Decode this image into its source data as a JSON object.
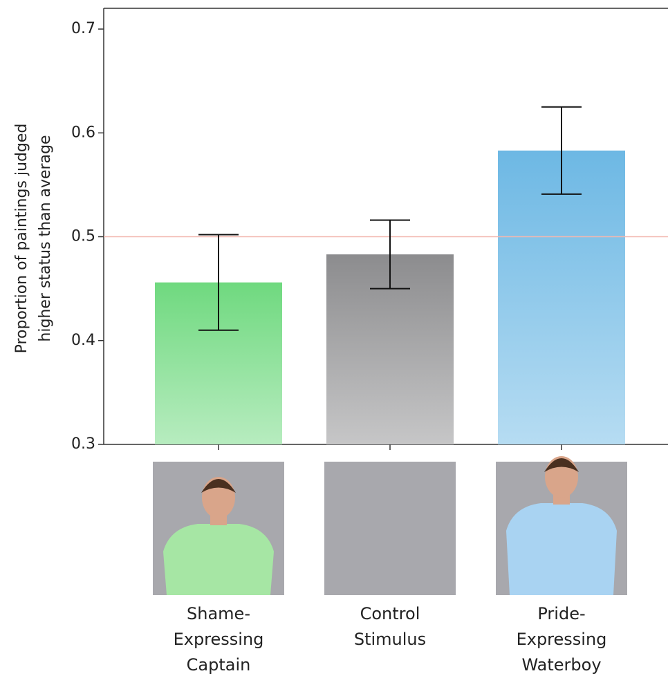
{
  "chart_data": {
    "type": "bar",
    "ylabel": [
      "Proportion of paintings judged",
      "higher status than average"
    ],
    "categories": [
      "Shame-\nExpressing\nCaptain",
      "Control\nStimulus",
      "Pride-\nExpressing\nWaterboy"
    ],
    "values": [
      0.456,
      0.483,
      0.583
    ],
    "errors": [
      0.046,
      0.033,
      0.042
    ],
    "colors": [
      "#6fd97f",
      "#8c8c8e",
      "#6db8e4"
    ],
    "reference_line": 0.5,
    "reference_color": "#f2b8b0",
    "ylim": [
      0.3,
      0.72
    ],
    "yticks": [
      0.3,
      0.4,
      0.5,
      0.6,
      0.7
    ],
    "grid": false
  }
}
